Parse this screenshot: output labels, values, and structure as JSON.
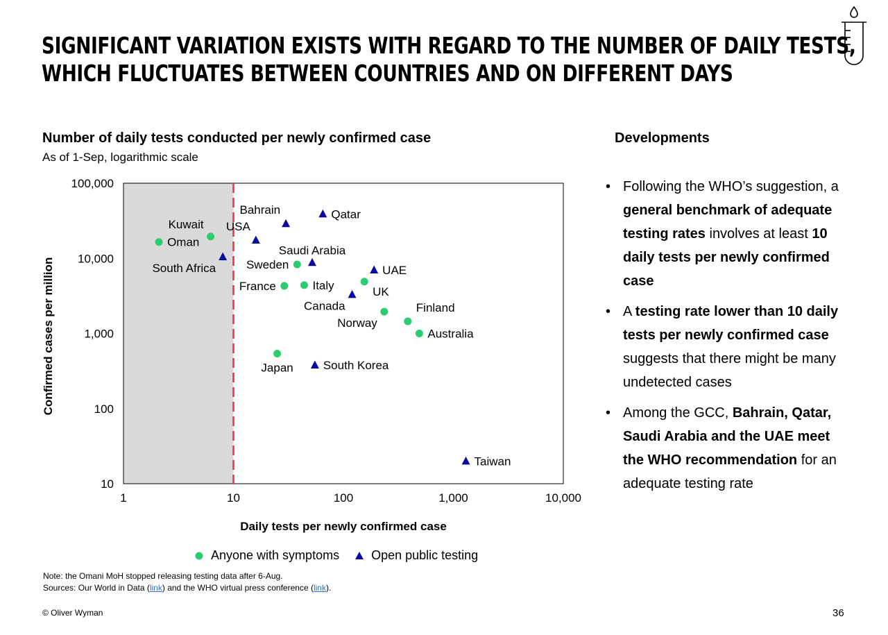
{
  "slide": {
    "title_line1": "SIGNIFICANT VARIATION EXISTS WITH REGARD TO THE NUMBER OF DAILY TESTS,",
    "title_line2": "WHICH FLUCTUATES BETWEEN COUNTRIES AND ON DIFFERENT DAYS",
    "icon": "test-tube-icon",
    "page_number": "36",
    "copyright": "© Oliver Wyman",
    "note": "Note: the Omani MoH stopped releasing testing data after 6-Aug.",
    "sources_prefix": "Sources: Our World in Data (",
    "link1": "link",
    "sources_mid": ") and the WHO virtual press conference (",
    "link2": "link",
    "sources_suffix": ")."
  },
  "developments": {
    "title": "Developments",
    "bullets": [
      [
        {
          "t": "Following the WHO’s suggestion, a ",
          "b": false
        },
        {
          "t": "general benchmark of adequate testing rates",
          "b": true
        },
        {
          "t": " involves at least ",
          "b": false
        },
        {
          "t": "10 daily tests per newly confirmed case",
          "b": true
        }
      ],
      [
        {
          "t": "A ",
          "b": false
        },
        {
          "t": "testing rate lower than 10 daily tests per newly confirmed case",
          "b": true
        },
        {
          "t": " suggests that there might be many undetected cases",
          "b": false
        }
      ],
      [
        {
          "t": "Among the GCC, ",
          "b": false
        },
        {
          "t": "Bahrain, Qatar, Saudi Arabia and the UAE meet the WHO recommendation",
          "b": true
        },
        {
          "t": " for an adequate testing rate",
          "b": false
        }
      ]
    ]
  },
  "chart_data": {
    "type": "scatter",
    "title": "Number of daily tests conducted per newly confirmed case",
    "subtitle": "As of 1-Sep, logarithmic scale",
    "xlabel": "Daily tests per newly confirmed case",
    "ylabel": "Confirmed cases per million",
    "x_scale": "log",
    "y_scale": "log",
    "xlim": [
      1,
      10000
    ],
    "ylim": [
      10,
      100000
    ],
    "x_ticks": [
      1,
      10,
      100,
      1000,
      10000
    ],
    "x_tick_labels": [
      "1",
      "10",
      "100",
      "1,000",
      "10,000"
    ],
    "y_ticks": [
      10,
      100,
      1000,
      10000,
      100000
    ],
    "y_tick_labels": [
      "10",
      "100",
      "1,000",
      "10,000",
      "100,000"
    ],
    "benchmark_x": 10,
    "shaded_region_x": [
      1,
      10
    ],
    "grid": false,
    "legend_position": "bottom",
    "colors": {
      "anyone_with_symptoms": "#2ecc71",
      "open_public_testing": "#0a0aa0",
      "benchmark_line": "#e8334a",
      "shaded_region": "#dadada"
    },
    "series": [
      {
        "name": "Anyone with symptoms",
        "marker": "circle",
        "points": [
          {
            "label": "Oman",
            "x": 2.1,
            "y": 16500,
            "label_pos": "right"
          },
          {
            "label": "Kuwait",
            "x": 6.2,
            "y": 19500,
            "label_pos": "topleft"
          },
          {
            "label": "Sweden",
            "x": 38,
            "y": 8300,
            "label_pos": "left"
          },
          {
            "label": "France",
            "x": 29,
            "y": 4300,
            "label_pos": "left"
          },
          {
            "label": "Italy",
            "x": 44,
            "y": 4400,
            "label_pos": "right"
          },
          {
            "label": "UK",
            "x": 155,
            "y": 4900,
            "label_pos": "below-right"
          },
          {
            "label": "Norway",
            "x": 235,
            "y": 1950,
            "label_pos": "below-left"
          },
          {
            "label": "Finland",
            "x": 385,
            "y": 1450,
            "label_pos": "above-right"
          },
          {
            "label": "Australia",
            "x": 490,
            "y": 1000,
            "label_pos": "right"
          },
          {
            "label": "Japan",
            "x": 25,
            "y": 540,
            "label_pos": "below"
          }
        ]
      },
      {
        "name": "Open public testing",
        "marker": "triangle",
        "points": [
          {
            "label": "South Africa",
            "x": 8.0,
            "y": 10500,
            "label_pos": "below-left"
          },
          {
            "label": "USA",
            "x": 16,
            "y": 17500,
            "label_pos": "above-left"
          },
          {
            "label": "Bahrain",
            "x": 30,
            "y": 29000,
            "label_pos": "above-left"
          },
          {
            "label": "Qatar",
            "x": 65,
            "y": 39000,
            "label_pos": "right"
          },
          {
            "label": "Saudi Arabia",
            "x": 52,
            "y": 8800,
            "label_pos": "above"
          },
          {
            "label": "UAE",
            "x": 190,
            "y": 7000,
            "label_pos": "right"
          },
          {
            "label": "Canada",
            "x": 120,
            "y": 3300,
            "label_pos": "below-left"
          },
          {
            "label": "South Korea",
            "x": 55,
            "y": 380,
            "label_pos": "right"
          },
          {
            "label": "Taiwan",
            "x": 1300,
            "y": 20,
            "label_pos": "right"
          }
        ]
      }
    ]
  }
}
